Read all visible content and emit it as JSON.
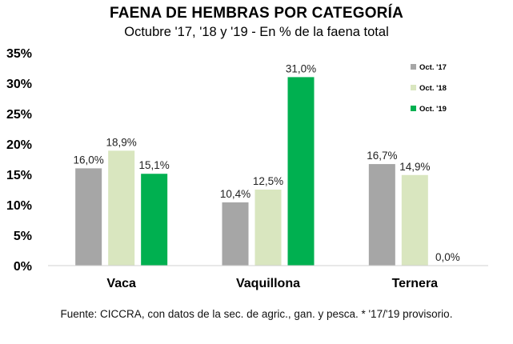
{
  "chart_data": {
    "type": "bar",
    "title": "FAENA DE HEMBRAS POR CATEGORÍA",
    "subtitle": "Octubre '17, '18 y '19 - En % de la faena total",
    "categories": [
      "Vaca",
      "Vaquillona",
      "Ternera"
    ],
    "series": [
      {
        "name": "Oct. '17",
        "color": "#a6a6a6",
        "values": [
          16.0,
          10.4,
          16.7
        ],
        "labels": [
          "16,0%",
          "10,4%",
          "16,7%"
        ]
      },
      {
        "name": "Oct. '18",
        "color": "#d9e6bf",
        "values": [
          18.9,
          12.5,
          14.9
        ],
        "labels": [
          "18,9%",
          "12,5%",
          "14,9%"
        ]
      },
      {
        "name": "Oct. '19",
        "color": "#00b050",
        "values": [
          15.1,
          31.0,
          0.0
        ],
        "labels": [
          "15,1%",
          "31,0%",
          "0,0%"
        ]
      }
    ],
    "yticks": [
      0,
      5,
      10,
      15,
      20,
      25,
      30,
      35
    ],
    "ytick_labels": [
      "0%",
      "5%",
      "10%",
      "15%",
      "20%",
      "25%",
      "30%",
      "35%"
    ],
    "ylim": [
      0,
      35
    ],
    "grid": false,
    "legend": "top-right",
    "xlabel": "",
    "ylabel": ""
  },
  "source_note": "Fuente: CICCRA, con datos de la sec. de agric., gan. y pesca. * '17/'19 provisorio."
}
